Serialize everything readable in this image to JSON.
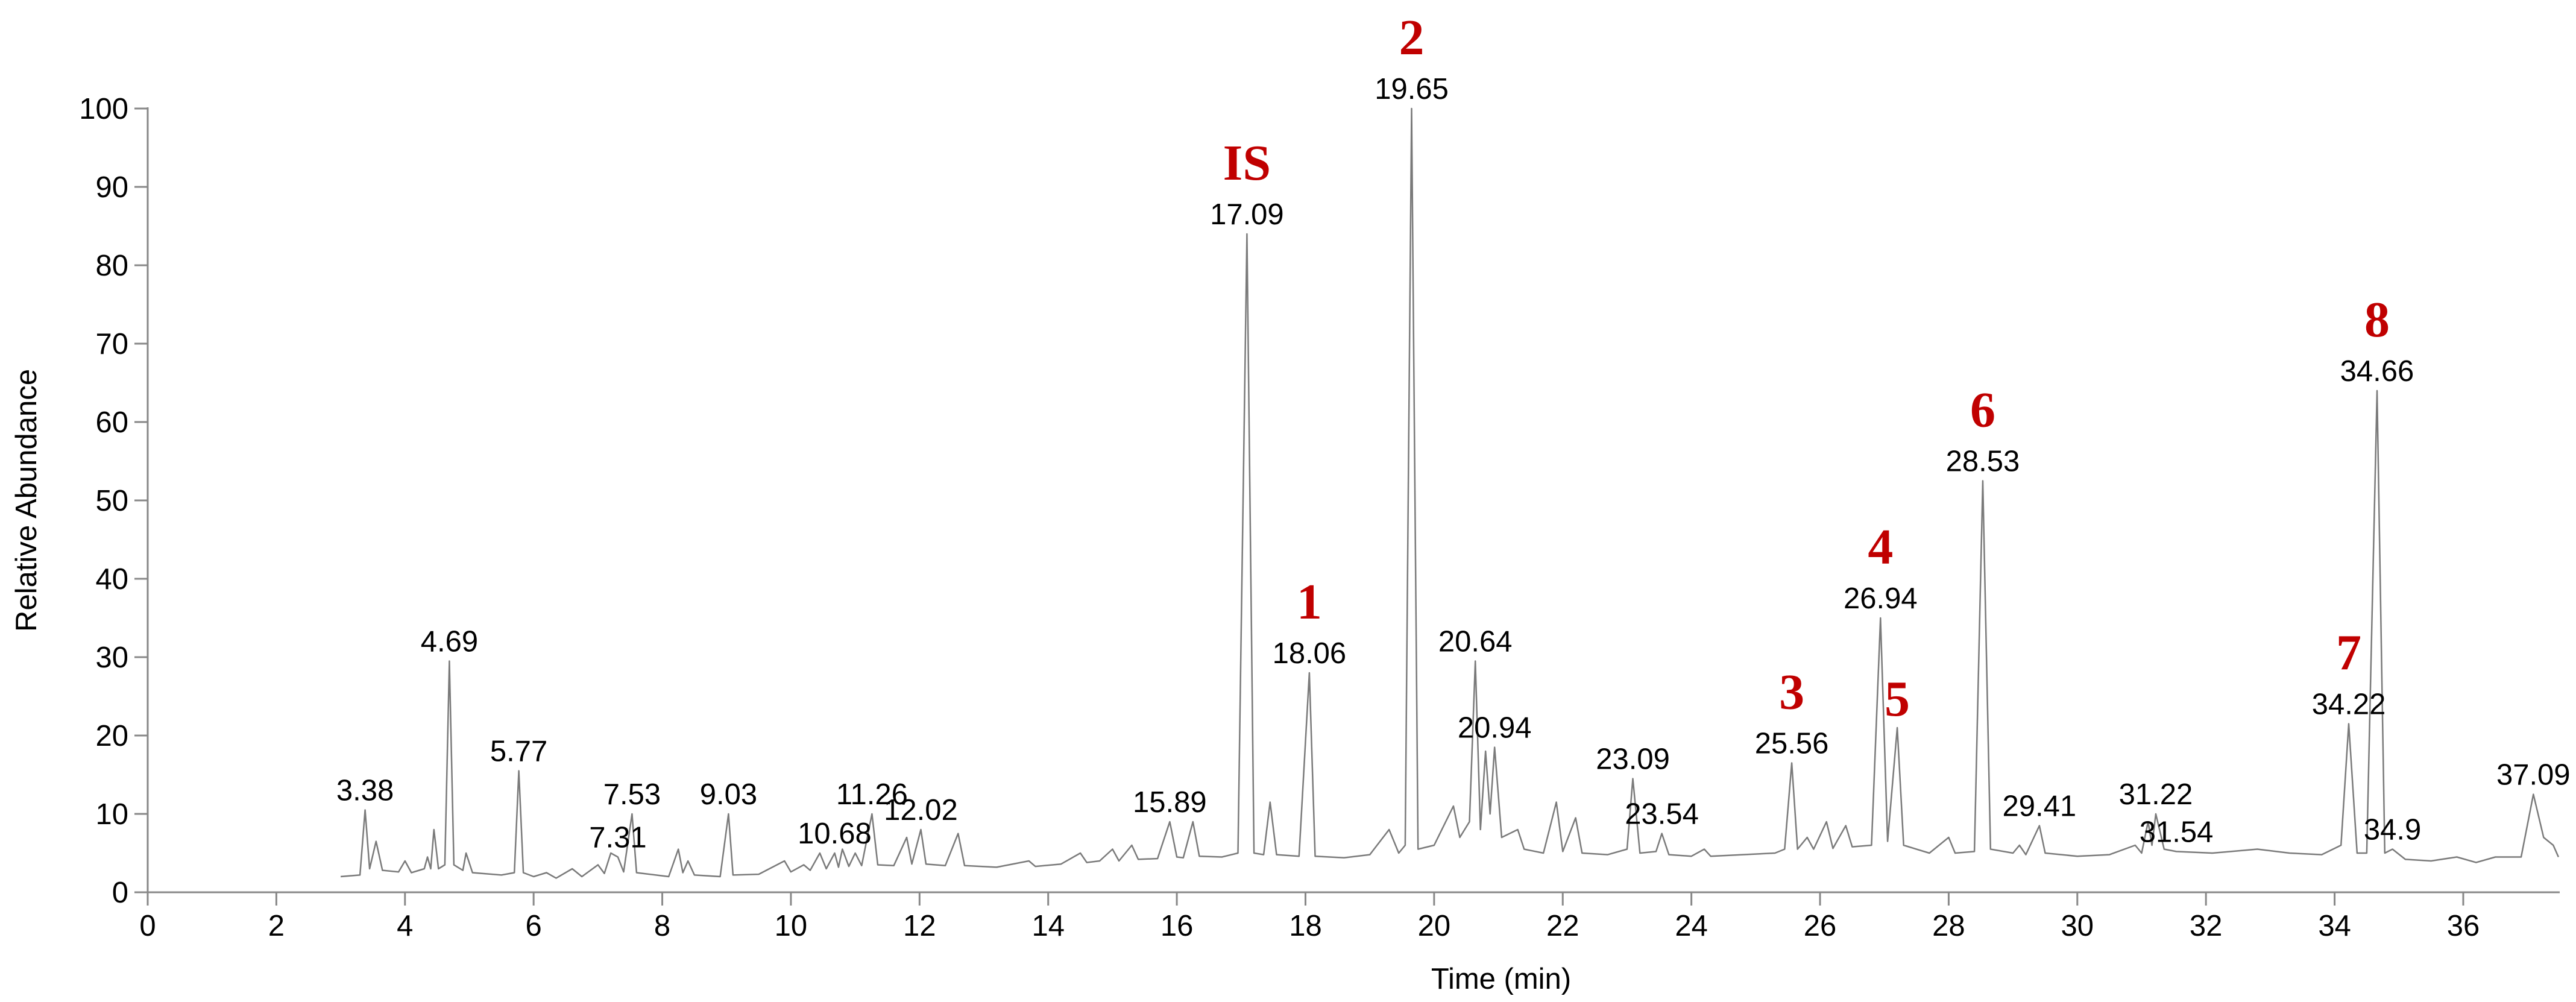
{
  "chart_data": {
    "type": "line",
    "x_label": "Time (min)",
    "y_label": "Relative Abundance",
    "xlim": [
      0,
      37.5
    ],
    "ylim": [
      0,
      100
    ],
    "xticks": [
      0,
      2,
      4,
      6,
      8,
      10,
      12,
      14,
      16,
      18,
      20,
      22,
      24,
      26,
      28,
      30,
      32,
      34,
      36
    ],
    "yticks": [
      0,
      10,
      20,
      30,
      40,
      50,
      60,
      70,
      80,
      90,
      100
    ],
    "color": "#7a7a7a",
    "x": [
      3.0,
      3.3,
      3.38,
      3.45,
      3.55,
      3.65,
      3.9,
      4.0,
      4.1,
      4.3,
      4.35,
      4.4,
      4.45,
      4.52,
      4.62,
      4.69,
      4.76,
      4.9,
      4.95,
      5.05,
      5.5,
      5.7,
      5.77,
      5.84,
      6.0,
      6.2,
      6.35,
      6.6,
      6.75,
      7.0,
      7.1,
      7.2,
      7.31,
      7.4,
      7.53,
      7.6,
      7.9,
      8.1,
      8.25,
      8.32,
      8.4,
      8.5,
      8.9,
      9.03,
      9.1,
      9.5,
      9.9,
      10.0,
      10.2,
      10.3,
      10.45,
      10.55,
      10.68,
      10.74,
      10.8,
      10.9,
      11.0,
      11.1,
      11.26,
      11.35,
      11.6,
      11.8,
      11.88,
      12.02,
      12.1,
      12.4,
      12.6,
      12.7,
      13.2,
      13.7,
      13.8,
      14.2,
      14.5,
      14.6,
      14.8,
      15.0,
      15.1,
      15.3,
      15.4,
      15.7,
      15.89,
      16.0,
      16.1,
      16.25,
      16.35,
      16.7,
      16.95,
      17.09,
      17.2,
      17.35,
      17.45,
      17.55,
      17.9,
      18.06,
      18.15,
      18.6,
      19.0,
      19.3,
      19.45,
      19.55,
      19.65,
      19.75,
      20.0,
      20.3,
      20.4,
      20.55,
      20.64,
      20.72,
      20.8,
      20.87,
      20.94,
      21.05,
      21.3,
      21.4,
      21.7,
      21.9,
      22.0,
      22.2,
      22.3,
      22.7,
      23.0,
      23.09,
      23.2,
      23.45,
      23.54,
      23.65,
      24.0,
      24.2,
      24.3,
      24.8,
      25.3,
      25.45,
      25.56,
      25.65,
      25.8,
      25.9,
      26.1,
      26.2,
      26.4,
      26.5,
      26.8,
      26.94,
      27.05,
      27.2,
      27.3,
      27.7,
      28.0,
      28.1,
      28.4,
      28.53,
      28.65,
      29.0,
      29.1,
      29.2,
      29.41,
      29.5,
      30.0,
      30.5,
      30.9,
      31.0,
      31.1,
      31.16,
      31.22,
      31.35,
      31.54,
      32.1,
      32.8,
      33.3,
      33.8,
      34.1,
      34.22,
      34.35,
      34.5,
      34.66,
      34.78,
      34.9,
      35.1,
      35.5,
      35.9,
      36.2,
      36.5,
      36.9,
      37.09,
      37.25,
      37.4,
      37.48
    ],
    "values": [
      2,
      2.2,
      10.5,
      3,
      6.5,
      2.8,
      2.6,
      4,
      2.5,
      3,
      4.5,
      3,
      8,
      3,
      3.5,
      29.5,
      3.5,
      2.8,
      5,
      2.5,
      2.2,
      2.5,
      15.5,
      2.5,
      2,
      2.5,
      1.8,
      3,
      2,
      3.5,
      2.4,
      5,
      4.5,
      2.6,
      10,
      2.5,
      2.2,
      2,
      5.5,
      2.5,
      4,
      2.2,
      2,
      10,
      2.2,
      2.3,
      4,
      2.6,
      3.5,
      2.8,
      5,
      3,
      5,
      3.2,
      5.5,
      3.3,
      5,
      3.4,
      10,
      3.5,
      3.4,
      7,
      3.6,
      8,
      3.6,
      3.4,
      7.5,
      3.4,
      3.2,
      4,
      3.3,
      3.6,
      5,
      3.8,
      4,
      5.5,
      4,
      6,
      4.2,
      4.3,
      9,
      4.5,
      4.4,
      9,
      4.6,
      4.5,
      5,
      84,
      5,
      4.8,
      11.5,
      4.8,
      4.6,
      28,
      4.6,
      4.4,
      4.8,
      8,
      5,
      6,
      100,
      5.5,
      6,
      11,
      7,
      9,
      29.5,
      8,
      18,
      10,
      18.5,
      7,
      8,
      5.5,
      5,
      11.5,
      5.2,
      9.5,
      5,
      4.8,
      5.5,
      14.5,
      5,
      5.2,
      7.5,
      4.8,
      4.6,
      5.5,
      4.6,
      4.8,
      5,
      5.5,
      16.5,
      5.5,
      7,
      5.5,
      9,
      5.6,
      8.5,
      5.8,
      6,
      35,
      6.5,
      21,
      6,
      5,
      7,
      5,
      5.2,
      52.5,
      5.5,
      5,
      6,
      4.8,
      8.5,
      5,
      4.6,
      4.8,
      6,
      5,
      9,
      6,
      10,
      5.5,
      5.2,
      5,
      5.5,
      5,
      4.8,
      6,
      21.5,
      5,
      5,
      64,
      5,
      5.5,
      4.2,
      4,
      4.5,
      3.8,
      4.5,
      4.5,
      12.5,
      7,
      6,
      4.5
    ],
    "peaks": [
      {
        "time": 3.38,
        "height": 10.5
      },
      {
        "time": 4.69,
        "height": 29.5
      },
      {
        "time": 5.77,
        "height": 15.5
      },
      {
        "time": 7.31,
        "height": 4.5
      },
      {
        "time": 7.53,
        "height": 10
      },
      {
        "time": 9.03,
        "height": 10
      },
      {
        "time": 10.68,
        "height": 5
      },
      {
        "time": 11.26,
        "height": 10
      },
      {
        "time": 12.02,
        "height": 8
      },
      {
        "time": 15.89,
        "height": 9
      },
      {
        "time": 17.09,
        "height": 84
      },
      {
        "time": 18.06,
        "height": 28
      },
      {
        "time": 19.65,
        "height": 100
      },
      {
        "time": 20.64,
        "height": 29.5
      },
      {
        "time": 20.94,
        "height": 18.5
      },
      {
        "time": 23.09,
        "height": 14.5
      },
      {
        "time": 23.54,
        "height": 7.5
      },
      {
        "time": 25.56,
        "height": 16.5
      },
      {
        "time": 26.94,
        "height": 35
      },
      {
        "time": 28.53,
        "height": 52.5
      },
      {
        "time": 29.41,
        "height": 8.5
      },
      {
        "time": 31.22,
        "height": 10
      },
      {
        "time": 31.54,
        "height": 5.2
      },
      {
        "time": 34.22,
        "height": 21.5
      },
      {
        "time": 34.66,
        "height": 64
      },
      {
        "time": 34.9,
        "height": 5.5
      },
      {
        "time": 37.09,
        "height": 12.5
      }
    ],
    "annotations": [
      {
        "text": "IS",
        "x": 17.09,
        "y": 84
      },
      {
        "text": "1",
        "x": 18.06,
        "y": 28
      },
      {
        "text": "2",
        "x": 19.65,
        "y": 100
      },
      {
        "text": "3",
        "x": 25.56,
        "y": 16.5
      },
      {
        "text": "4",
        "x": 26.94,
        "y": 35
      },
      {
        "text": "5",
        "x": 27.2,
        "y": 21
      },
      {
        "text": "6",
        "x": 28.53,
        "y": 52.5
      },
      {
        "text": "7",
        "x": 34.22,
        "y": 21.5
      },
      {
        "text": "8",
        "x": 34.66,
        "y": 64
      }
    ]
  }
}
